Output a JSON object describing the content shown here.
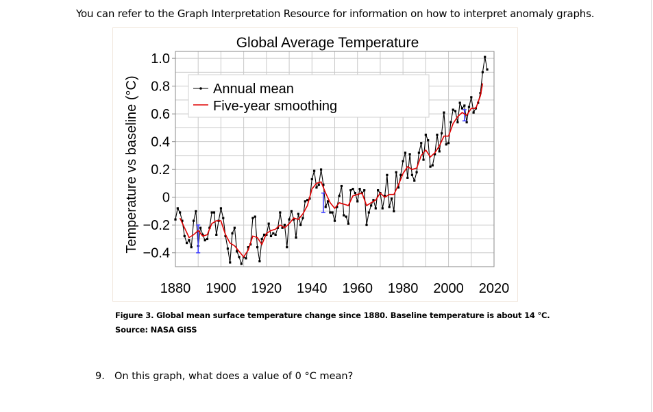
{
  "page": {
    "intro_text": "You can refer to the Graph Interpretation Resource for information on how to interpret anomaly graphs.",
    "caption_line1": "Figure 3. Global mean surface temperature change since 1880. Baseline temperature is about 14 °C.",
    "caption_line2": "Source: NASA GISS",
    "question_number": "9.",
    "question_text": "On this graph, what does a value of 0 °C mean?"
  },
  "colors": {
    "annual": "#000000",
    "smooth": "#e00000",
    "uncertainty": "#4040ff",
    "grid": "#c8c8c8"
  },
  "chart_data": {
    "type": "line",
    "title": "Global Average Temperature",
    "xlabel": "",
    "ylabel": "Temperature vs baseline (°C)",
    "xlim": [
      1880,
      2020
    ],
    "ylim": [
      -0.5,
      1.05
    ],
    "x_ticks": [
      1880,
      1900,
      1920,
      1940,
      1960,
      1980,
      2000,
      2020
    ],
    "x_tick_labels": [
      "1880",
      "1900",
      "1920",
      "1940",
      "1960",
      "1980",
      "2000",
      "2020"
    ],
    "y_ticks": [
      -0.4,
      -0.2,
      0,
      0.2,
      0.4,
      0.6,
      0.8,
      1.0
    ],
    "y_tick_labels": [
      "−0.4",
      "−0.2",
      "0",
      "0.2",
      "0.4",
      "0.6",
      "0.8",
      "1.0"
    ],
    "legend_position": "top-left",
    "legend": [
      "Annual mean",
      "Five-year smoothing"
    ],
    "series": [
      {
        "name": "Annual mean",
        "x": [
          1880,
          1881,
          1882,
          1883,
          1884,
          1885,
          1886,
          1887,
          1888,
          1889,
          1890,
          1891,
          1892,
          1893,
          1894,
          1895,
          1896,
          1897,
          1898,
          1899,
          1900,
          1901,
          1902,
          1903,
          1904,
          1905,
          1906,
          1907,
          1908,
          1909,
          1910,
          1911,
          1912,
          1913,
          1914,
          1915,
          1916,
          1917,
          1918,
          1919,
          1920,
          1921,
          1922,
          1923,
          1924,
          1925,
          1926,
          1927,
          1928,
          1929,
          1930,
          1931,
          1932,
          1933,
          1934,
          1935,
          1936,
          1937,
          1938,
          1939,
          1940,
          1941,
          1942,
          1943,
          1944,
          1945,
          1946,
          1947,
          1948,
          1949,
          1950,
          1951,
          1952,
          1953,
          1954,
          1955,
          1956,
          1957,
          1958,
          1959,
          1960,
          1961,
          1962,
          1963,
          1964,
          1965,
          1966,
          1967,
          1968,
          1969,
          1970,
          1971,
          1972,
          1973,
          1974,
          1975,
          1976,
          1977,
          1978,
          1979,
          1980,
          1981,
          1982,
          1983,
          1984,
          1985,
          1986,
          1987,
          1988,
          1989,
          1990,
          1991,
          1992,
          1993,
          1994,
          1995,
          1996,
          1997,
          1998,
          1999,
          2000,
          2001,
          2002,
          2003,
          2004,
          2005,
          2006,
          2007,
          2008,
          2009,
          2010,
          2011,
          2012,
          2013,
          2014,
          2015,
          2016,
          2017
        ],
        "values": [
          -0.16,
          -0.08,
          -0.11,
          -0.17,
          -0.28,
          -0.33,
          -0.31,
          -0.36,
          -0.17,
          -0.1,
          -0.35,
          -0.22,
          -0.27,
          -0.31,
          -0.3,
          -0.22,
          -0.11,
          -0.11,
          -0.27,
          -0.17,
          -0.08,
          -0.15,
          -0.28,
          -0.37,
          -0.47,
          -0.26,
          -0.22,
          -0.39,
          -0.43,
          -0.48,
          -0.43,
          -0.44,
          -0.36,
          -0.34,
          -0.15,
          -0.14,
          -0.36,
          -0.46,
          -0.3,
          -0.27,
          -0.27,
          -0.19,
          -0.28,
          -0.26,
          -0.27,
          -0.22,
          -0.11,
          -0.22,
          -0.2,
          -0.36,
          -0.16,
          -0.1,
          -0.16,
          -0.29,
          -0.12,
          -0.2,
          -0.15,
          -0.03,
          -0.02,
          -0.01,
          0.13,
          0.19,
          0.07,
          0.09,
          0.2,
          0.09,
          -0.07,
          -0.03,
          -0.11,
          -0.11,
          -0.17,
          -0.07,
          0.01,
          0.08,
          -0.13,
          -0.14,
          -0.19,
          0.05,
          0.06,
          0.03,
          -0.03,
          0.06,
          0.03,
          0.05,
          -0.2,
          -0.11,
          -0.06,
          -0.02,
          -0.08,
          0.05,
          0.03,
          -0.08,
          0.01,
          0.16,
          -0.07,
          -0.01,
          -0.1,
          0.18,
          0.07,
          0.16,
          0.26,
          0.32,
          0.14,
          0.31,
          0.16,
          0.12,
          0.18,
          0.32,
          0.39,
          0.27,
          0.45,
          0.41,
          0.22,
          0.23,
          0.31,
          0.45,
          0.33,
          0.46,
          0.61,
          0.38,
          0.39,
          0.54,
          0.63,
          0.62,
          0.54,
          0.68,
          0.64,
          0.66,
          0.54,
          0.65,
          0.72,
          0.61,
          0.64,
          0.68,
          0.75,
          0.9,
          1.01,
          0.92
        ]
      },
      {
        "name": "Five-year smoothing",
        "x": [
          1882,
          1884,
          1886,
          1888,
          1890,
          1892,
          1894,
          1896,
          1898,
          1900,
          1902,
          1904,
          1906,
          1908,
          1910,
          1912,
          1914,
          1916,
          1918,
          1920,
          1922,
          1924,
          1926,
          1928,
          1930,
          1932,
          1934,
          1936,
          1938,
          1940,
          1942,
          1944,
          1946,
          1948,
          1950,
          1952,
          1954,
          1956,
          1958,
          1960,
          1962,
          1964,
          1966,
          1968,
          1970,
          1972,
          1974,
          1976,
          1978,
          1980,
          1982,
          1984,
          1986,
          1988,
          1990,
          1992,
          1994,
          1996,
          1998,
          2000,
          2002,
          2004,
          2006,
          2008,
          2010,
          2012,
          2014,
          2015
        ],
        "values": [
          -0.15,
          -0.22,
          -0.29,
          -0.27,
          -0.24,
          -0.28,
          -0.27,
          -0.19,
          -0.17,
          -0.17,
          -0.27,
          -0.33,
          -0.35,
          -0.39,
          -0.43,
          -0.38,
          -0.28,
          -0.29,
          -0.34,
          -0.26,
          -0.24,
          -0.23,
          -0.2,
          -0.22,
          -0.19,
          -0.15,
          -0.16,
          -0.12,
          -0.06,
          0.06,
          0.1,
          0.11,
          0.03,
          -0.04,
          -0.08,
          -0.04,
          -0.05,
          -0.06,
          0.01,
          0.02,
          0.03,
          -0.06,
          -0.04,
          -0.02,
          0.03,
          0.0,
          0.02,
          0.02,
          0.09,
          0.17,
          0.22,
          0.2,
          0.21,
          0.3,
          0.34,
          0.29,
          0.32,
          0.37,
          0.44,
          0.44,
          0.53,
          0.58,
          0.61,
          0.59,
          0.64,
          0.64,
          0.73,
          0.82
        ]
      }
    ],
    "uncertainty_bars": [
      {
        "x": 1890,
        "low": -0.4,
        "high": -0.2
      },
      {
        "x": 1945,
        "low": -0.11,
        "high": 0.03
      },
      {
        "x": 2007,
        "low": 0.55,
        "high": 0.63
      }
    ]
  }
}
